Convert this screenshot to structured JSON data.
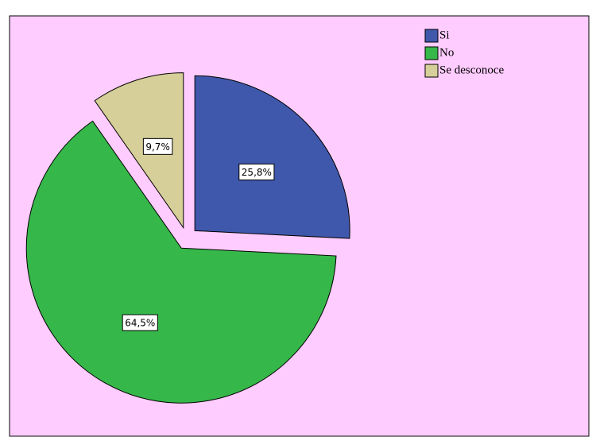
{
  "chart_data": {
    "type": "pie",
    "categories": [
      "Si",
      "No",
      "Se desconoce"
    ],
    "values": [
      25.8,
      64.5,
      9.7
    ],
    "value_labels": [
      "25,8%",
      "64,5%",
      "9,7%"
    ],
    "colors": [
      "#3f58ab",
      "#36b74a",
      "#d6cf99"
    ],
    "legend": "top-right"
  }
}
